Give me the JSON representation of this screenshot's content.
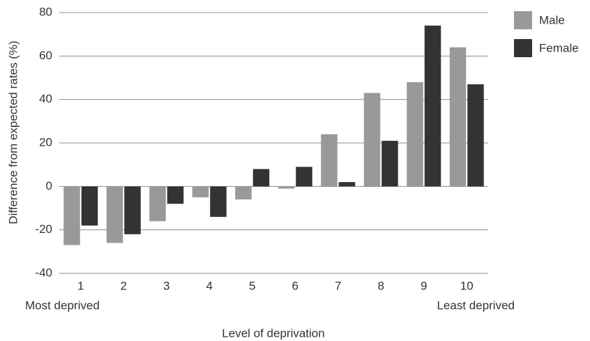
{
  "chart_data": {
    "type": "bar",
    "y_label": "Difference from expected rates (%)",
    "x_label": "Level of deprivation",
    "annotations": [
      "Most deprived",
      "Least deprived"
    ],
    "categories": [
      "1",
      "2",
      "3",
      "4",
      "5",
      "6",
      "7",
      "8",
      "9",
      "10"
    ],
    "series": [
      {
        "name": "Male",
        "color": "#999999",
        "values": [
          -27,
          -26,
          -16,
          -5,
          -6,
          -1,
          24,
          43,
          48,
          64
        ]
      },
      {
        "name": "Female",
        "color": "#333333",
        "values": [
          -18,
          -22,
          -8,
          -14,
          8,
          9,
          2,
          21,
          74,
          47
        ]
      }
    ],
    "ylim": [
      -40,
      80
    ],
    "yticks": [
      -40,
      -20,
      0,
      20,
      40,
      60,
      80
    ],
    "grid": true,
    "legend": "right"
  }
}
